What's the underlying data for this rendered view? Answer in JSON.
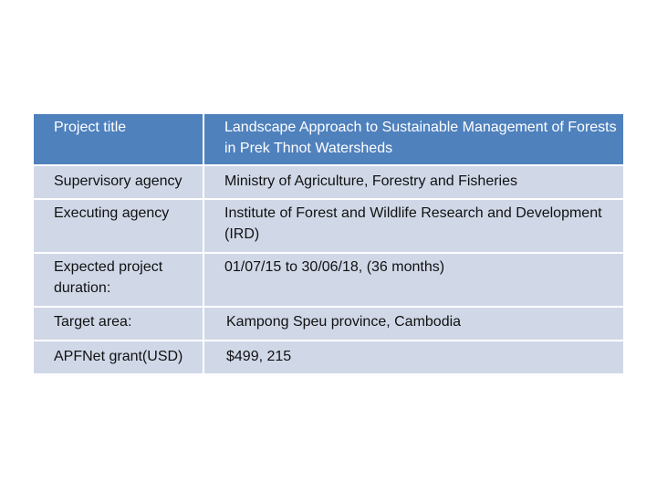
{
  "table": {
    "rows": [
      {
        "label": "Project title",
        "value": "Landscape Approach to Sustainable Management of Forests in Prek Thnot Watersheds"
      },
      {
        "label": "Supervisory agency",
        "value": "Ministry of Agriculture, Forestry and Fisheries"
      },
      {
        "label": "Executing agency",
        "value": "Institute of Forest and Wildlife Research and Development (IRD)"
      },
      {
        "label": "Expected project duration:",
        "value": "01/07/15 to 30/06/18, (36 months)"
      },
      {
        "label": "Target area:",
        "value": "Kampong  Speu province, Cambodia"
      },
      {
        "label": "APFNet grant(USD)",
        "value": "$499, 215"
      }
    ]
  },
  "colors": {
    "header_bg": "#4f81bd",
    "row_bg": "#d0d8e8",
    "header_text": "#ffffff"
  }
}
